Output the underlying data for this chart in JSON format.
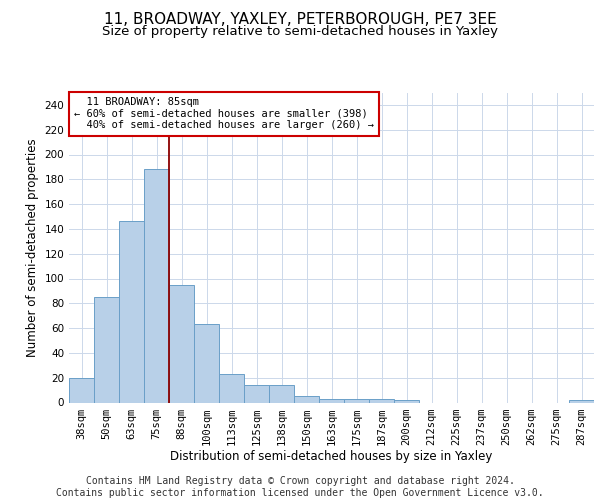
{
  "title": "11, BROADWAY, YAXLEY, PETERBOROUGH, PE7 3EE",
  "subtitle": "Size of property relative to semi-detached houses in Yaxley",
  "xlabel": "Distribution of semi-detached houses by size in Yaxley",
  "ylabel": "Number of semi-detached properties",
  "categories": [
    "38sqm",
    "50sqm",
    "63sqm",
    "75sqm",
    "88sqm",
    "100sqm",
    "113sqm",
    "125sqm",
    "138sqm",
    "150sqm",
    "163sqm",
    "175sqm",
    "187sqm",
    "200sqm",
    "212sqm",
    "225sqm",
    "237sqm",
    "250sqm",
    "262sqm",
    "275sqm",
    "287sqm"
  ],
  "values": [
    20,
    85,
    146,
    188,
    95,
    63,
    23,
    14,
    14,
    5,
    3,
    3,
    3,
    2,
    0,
    0,
    0,
    0,
    0,
    0,
    2
  ],
  "bar_color": "#b8d0e8",
  "bar_edge_color": "#6a9fc8",
  "property_label": "11 BROADWAY: 85sqm",
  "pct_smaller": 60,
  "count_smaller": 398,
  "pct_larger": 40,
  "count_larger": 260,
  "vline_x_index": 4,
  "vline_color": "#8b0000",
  "annotation_box_color": "#cc0000",
  "ylim": [
    0,
    250
  ],
  "yticks": [
    0,
    20,
    40,
    60,
    80,
    100,
    120,
    140,
    160,
    180,
    200,
    220,
    240
  ],
  "footer_line1": "Contains HM Land Registry data © Crown copyright and database right 2024.",
  "footer_line2": "Contains public sector information licensed under the Open Government Licence v3.0.",
  "title_fontsize": 11,
  "subtitle_fontsize": 9.5,
  "axis_label_fontsize": 8.5,
  "tick_fontsize": 7.5,
  "annotation_fontsize": 7.5,
  "footer_fontsize": 7,
  "background_color": "#ffffff",
  "grid_color": "#ccd8ea"
}
